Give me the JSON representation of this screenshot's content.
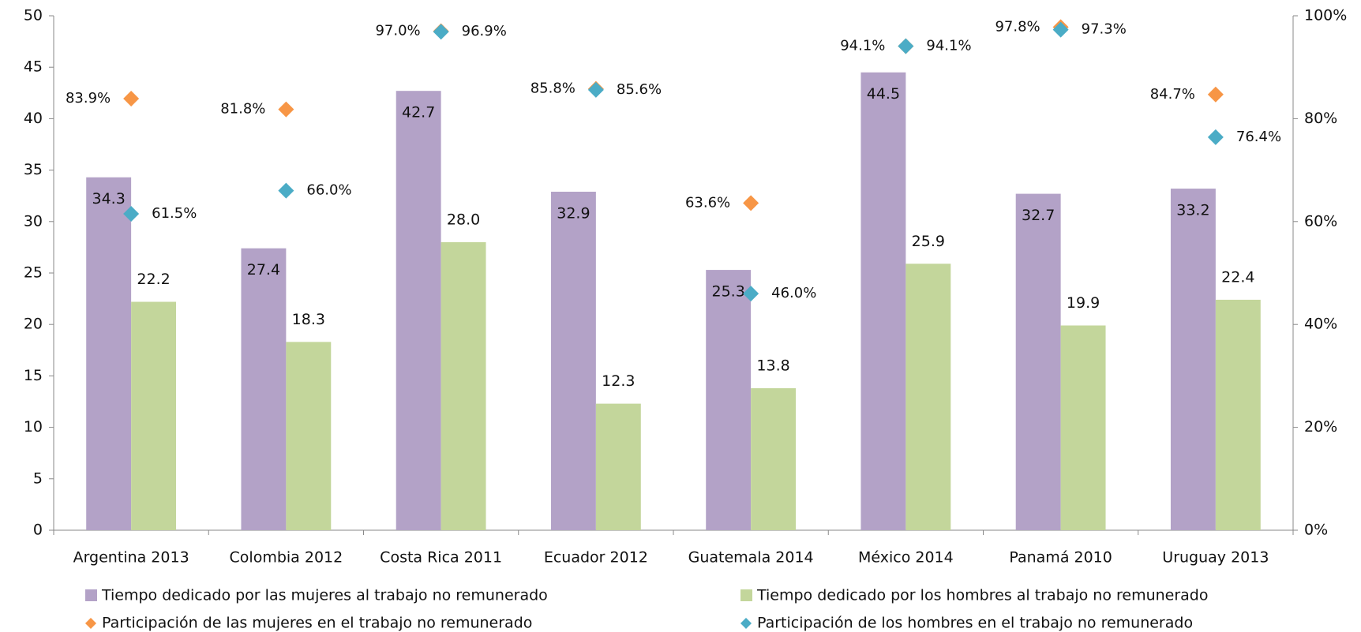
{
  "chart_data": {
    "type": "bar",
    "categories": [
      "Argentina 2013",
      "Colombia 2012",
      "Costa Rica 2011",
      "Ecuador 2012",
      "Guatemala 2014",
      "México 2014",
      "Panamá 2010",
      "Uruguay 2013"
    ],
    "series": [
      {
        "name": "Tiempo dedicado por las mujeres al trabajo no remunerado",
        "color": "#b3a2c7",
        "type": "bar",
        "values": [
          34.3,
          27.4,
          42.7,
          32.9,
          25.3,
          44.5,
          32.7,
          33.2
        ],
        "value_labels": [
          "34.3",
          "27.4",
          "42.7",
          "32.9",
          "25.3",
          "44.5",
          "32.7",
          "33.2"
        ]
      },
      {
        "name": "Tiempo dedicado por los hombres al trabajo  no remunerado",
        "color": "#c3d69b",
        "type": "bar",
        "values": [
          22.2,
          18.3,
          28.0,
          12.3,
          13.8,
          25.9,
          19.9,
          22.4
        ],
        "value_labels": [
          "22.2",
          "18.3",
          "28.0",
          "12.3",
          "13.8",
          "25.9",
          "19.9",
          "22.4"
        ]
      },
      {
        "name": "Participación de las mujeres en el trabajo no remunerado",
        "color": "#f79646",
        "type": "scatter",
        "axis": "y2",
        "values": [
          83.9,
          81.8,
          97.0,
          85.8,
          63.6,
          94.1,
          97.8,
          84.7
        ],
        "value_labels": [
          "83.9%",
          "81.8%",
          "97.0%",
          "85.8%",
          "63.6%",
          "94.1%",
          "97.8%",
          "84.7%"
        ]
      },
      {
        "name": "Participación de los hombres en el trabajo no remunerado",
        "color": "#4bacc6",
        "type": "scatter",
        "axis": "y2",
        "values": [
          61.5,
          66.0,
          96.9,
          85.6,
          46.0,
          94.1,
          97.3,
          76.4
        ],
        "value_labels": [
          "61.5%",
          "66.0%",
          "96.9%",
          "85.6%",
          "46.0%",
          "94.1%",
          "97.3%",
          "76.4%"
        ]
      }
    ],
    "ylim": [
      0,
      50
    ],
    "yticks": [
      0,
      5,
      10,
      15,
      20,
      25,
      30,
      35,
      40,
      45,
      50
    ],
    "y2lim": [
      0,
      100
    ],
    "y2ticks": [
      {
        "value": 0,
        "label": "0%"
      },
      {
        "value": 20,
        "label": "20%"
      },
      {
        "value": 40,
        "label": "40%"
      },
      {
        "value": 60,
        "label": "60%"
      },
      {
        "value": 80,
        "label": "80%"
      },
      {
        "value": 100,
        "label": "100%"
      }
    ],
    "legend": "bottom"
  }
}
